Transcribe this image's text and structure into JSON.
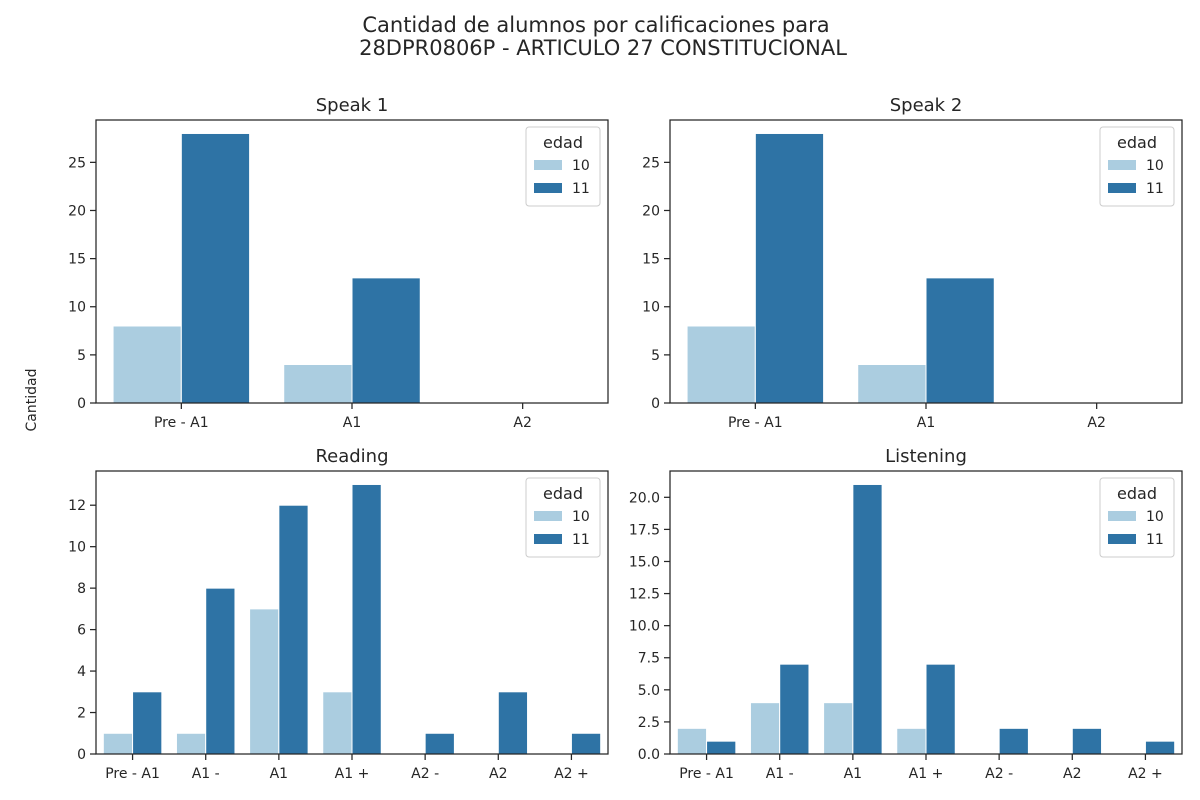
{
  "figure": {
    "title_line1": "Cantidad de alumnos por calificaciones para",
    "title_line2": "28DPR0806P - ARTICULO 27 CONSTITUCIONAL",
    "ylabel": "Cantidad"
  },
  "colors": {
    "edad_10": "#abcde0",
    "edad_11": "#2e73a5",
    "axis": "#262626"
  },
  "chart_data": [
    {
      "type": "bar",
      "title": "Speak 1",
      "categories": [
        "Pre - A1",
        "A1",
        "A2"
      ],
      "series": [
        {
          "name": "10",
          "values": [
            8,
            4,
            0
          ]
        },
        {
          "name": "11",
          "values": [
            28,
            13,
            0
          ]
        }
      ],
      "ylim": [
        0,
        29.4
      ],
      "yticks": [
        0,
        5,
        10,
        15,
        20,
        25
      ],
      "legend": {
        "title": "edad",
        "position": "top-right"
      },
      "xlabel": "",
      "ylabel": "Cantidad",
      "grid": false
    },
    {
      "type": "bar",
      "title": "Speak 2",
      "categories": [
        "Pre - A1",
        "A1",
        "A2"
      ],
      "series": [
        {
          "name": "10",
          "values": [
            8,
            4,
            0
          ]
        },
        {
          "name": "11",
          "values": [
            28,
            13,
            0
          ]
        }
      ],
      "ylim": [
        0,
        29.4
      ],
      "yticks": [
        0,
        5,
        10,
        15,
        20,
        25
      ],
      "legend": {
        "title": "edad",
        "position": "top-right"
      },
      "xlabel": "",
      "ylabel": "",
      "grid": false
    },
    {
      "type": "bar",
      "title": "Reading",
      "categories": [
        "Pre - A1",
        "A1 -",
        "A1",
        "A1 +",
        "A2 -",
        "A2",
        "A2 +"
      ],
      "series": [
        {
          "name": "10",
          "values": [
            1,
            1,
            7,
            3,
            0,
            0,
            0
          ]
        },
        {
          "name": "11",
          "values": [
            3,
            8,
            12,
            13,
            1,
            3,
            1
          ]
        }
      ],
      "ylim": [
        0,
        13.65
      ],
      "yticks": [
        0,
        2,
        4,
        6,
        8,
        10,
        12
      ],
      "legend": {
        "title": "edad",
        "position": "top-right"
      },
      "xlabel": "",
      "ylabel": "",
      "grid": false
    },
    {
      "type": "bar",
      "title": "Listening",
      "categories": [
        "Pre - A1",
        "A1 -",
        "A1",
        "A1 +",
        "A2 -",
        "A2",
        "A2 +"
      ],
      "series": [
        {
          "name": "10",
          "values": [
            2,
            4,
            4,
            2,
            0,
            0,
            0
          ]
        },
        {
          "name": "11",
          "values": [
            1,
            7,
            21,
            7,
            2,
            2,
            1
          ]
        }
      ],
      "ylim": [
        0,
        22.05
      ],
      "yticks": [
        0.0,
        2.5,
        5.0,
        7.5,
        10.0,
        12.5,
        15.0,
        17.5,
        20.0
      ],
      "ytick_decimals": 1,
      "legend": {
        "title": "edad",
        "position": "top-right"
      },
      "xlabel": "",
      "ylabel": "",
      "grid": false
    }
  ]
}
